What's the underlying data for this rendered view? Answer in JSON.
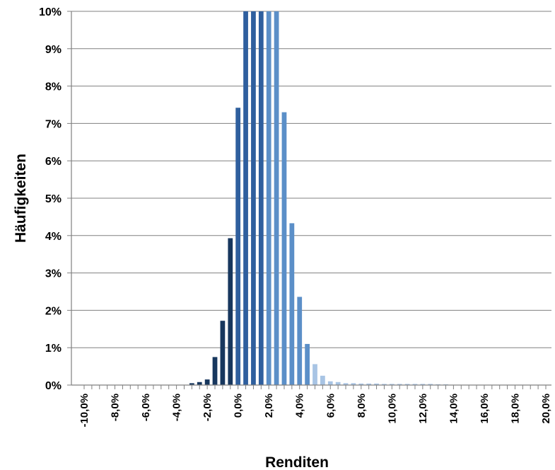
{
  "chart_data": {
    "type": "bar",
    "xlabel": "Renditen",
    "ylabel": "Häufigkeiten",
    "ylim": [
      0,
      10
    ],
    "xlim": [
      -10,
      20
    ],
    "grid": "horizontal",
    "y_ticks": [
      "0%",
      "1%",
      "2%",
      "3%",
      "4%",
      "5%",
      "6%",
      "7%",
      "8%",
      "9%",
      "10%"
    ],
    "x_ticks": [
      "-10,0%",
      "-8,0%",
      "-6,0%",
      "-4,0%",
      "-2,0%",
      "0,0%",
      "2,0%",
      "4,0%",
      "6,0%",
      "8,0%",
      "10,0%",
      "12,0%",
      "14,0%",
      "16,0%",
      "18,0%",
      "20,0%"
    ],
    "colors": {
      "negative": "#17375e",
      "low": "#2f5f9e",
      "mid": "#5b8fc8",
      "high": "#a8c4e4"
    },
    "bars": [
      {
        "x": -3.0,
        "value": 0.05,
        "tone": "negative"
      },
      {
        "x": -2.5,
        "value": 0.08,
        "tone": "negative"
      },
      {
        "x": -2.0,
        "value": 0.15,
        "tone": "negative"
      },
      {
        "x": -1.5,
        "value": 0.75,
        "tone": "negative"
      },
      {
        "x": -1.0,
        "value": 1.72,
        "tone": "negative"
      },
      {
        "x": -0.5,
        "value": 3.93,
        "tone": "negative"
      },
      {
        "x": 0.0,
        "value": 7.42,
        "tone": "low"
      },
      {
        "x": 0.5,
        "value": 10.0,
        "tone": "low"
      },
      {
        "x": 1.0,
        "value": 10.0,
        "tone": "low"
      },
      {
        "x": 1.5,
        "value": 10.0,
        "tone": "low"
      },
      {
        "x": 2.0,
        "value": 10.0,
        "tone": "mid"
      },
      {
        "x": 2.5,
        "value": 10.0,
        "tone": "mid"
      },
      {
        "x": 3.0,
        "value": 7.3,
        "tone": "mid"
      },
      {
        "x": 3.5,
        "value": 4.33,
        "tone": "mid"
      },
      {
        "x": 4.0,
        "value": 2.36,
        "tone": "mid"
      },
      {
        "x": 4.5,
        "value": 1.1,
        "tone": "mid"
      },
      {
        "x": 5.0,
        "value": 0.56,
        "tone": "high"
      },
      {
        "x": 5.5,
        "value": 0.25,
        "tone": "high"
      },
      {
        "x": 6.0,
        "value": 0.1,
        "tone": "high"
      },
      {
        "x": 6.5,
        "value": 0.08,
        "tone": "high"
      },
      {
        "x": 7.0,
        "value": 0.05,
        "tone": "high"
      },
      {
        "x": 7.5,
        "value": 0.05,
        "tone": "high"
      },
      {
        "x": 8.0,
        "value": 0.04,
        "tone": "high"
      },
      {
        "x": 8.5,
        "value": 0.04,
        "tone": "high"
      },
      {
        "x": 9.0,
        "value": 0.04,
        "tone": "high"
      },
      {
        "x": 9.5,
        "value": 0.03,
        "tone": "high"
      },
      {
        "x": 10.0,
        "value": 0.03,
        "tone": "high"
      },
      {
        "x": 10.5,
        "value": 0.03,
        "tone": "high"
      },
      {
        "x": 11.0,
        "value": 0.03,
        "tone": "high"
      },
      {
        "x": 11.5,
        "value": 0.03,
        "tone": "high"
      },
      {
        "x": 12.0,
        "value": 0.03,
        "tone": "high"
      },
      {
        "x": 12.5,
        "value": 0.03,
        "tone": "high"
      },
      {
        "x": 13.0,
        "value": 0.02,
        "tone": "high"
      },
      {
        "x": 13.5,
        "value": 0.02,
        "tone": "high"
      }
    ]
  }
}
